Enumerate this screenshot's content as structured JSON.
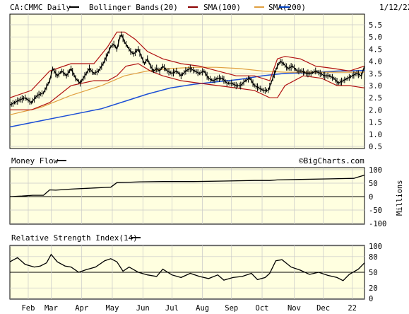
{
  "header": {
    "symbol": "CA:CMMC Daily",
    "legend": [
      {
        "label": "Bollinger Bands(20)",
        "color": "#8b0000"
      },
      {
        "label": "SMA(100)",
        "color": "#8b0000"
      },
      {
        "label": "SMA(200)",
        "color": "#e0a040"
      },
      {
        "label": "",
        "color": "#0040c0"
      }
    ],
    "date": "1/12/22"
  },
  "watermark": "©BigCharts.com",
  "colors": {
    "panel_bg": "#ffffe0",
    "grid": "#c8c8c8",
    "price": "#000000",
    "boll": "#b01010",
    "sma100": "#e0a040",
    "sma200": "#1c4fd6",
    "frame": "#000000"
  },
  "x_axis": {
    "months": [
      "Feb",
      "Mar",
      "Apr",
      "May",
      "Jun",
      "Jul",
      "Aug",
      "Sep",
      "Oct",
      "Nov",
      "Dec",
      "22"
    ]
  },
  "chart_data": [
    {
      "type": "line",
      "title": "CA:CMMC Daily",
      "series_kind": "price OHLC",
      "y_ticks": [
        "5.5",
        "5.0",
        "4.5",
        "4.0",
        "3.5",
        "3.0",
        "2.5",
        "2.0",
        "1.5",
        "1.0",
        "0.5"
      ],
      "ylim": [
        0.5,
        5.5
      ],
      "grid": true,
      "price_path": [
        [
          0,
          2.2
        ],
        [
          6,
          2.4
        ],
        [
          10,
          2.5
        ],
        [
          14,
          2.3
        ],
        [
          18,
          2.6
        ],
        [
          22,
          2.7
        ],
        [
          26,
          3.2
        ],
        [
          28,
          3.7
        ],
        [
          31,
          3.4
        ],
        [
          34,
          3.6
        ],
        [
          37,
          3.4
        ],
        [
          40,
          3.7
        ],
        [
          43,
          3.3
        ],
        [
          46,
          3.1
        ],
        [
          49,
          3.4
        ],
        [
          52,
          3.7
        ],
        [
          55,
          3.5
        ],
        [
          58,
          3.6
        ],
        [
          61,
          3.9
        ],
        [
          64,
          4.3
        ],
        [
          66,
          4.6
        ],
        [
          68,
          4.7
        ],
        [
          70,
          4.5
        ],
        [
          72,
          5.0
        ],
        [
          73,
          5.1
        ],
        [
          75,
          4.8
        ],
        [
          77,
          4.6
        ],
        [
          79,
          4.4
        ],
        [
          81,
          4.3
        ],
        [
          84,
          4.5
        ],
        [
          86,
          4.2
        ],
        [
          88,
          3.9
        ],
        [
          90,
          4.1
        ],
        [
          92,
          3.8
        ],
        [
          94,
          3.6
        ],
        [
          96,
          3.7
        ],
        [
          98,
          3.6
        ],
        [
          100,
          3.8
        ],
        [
          103,
          3.6
        ],
        [
          106,
          3.5
        ],
        [
          109,
          3.6
        ],
        [
          112,
          3.4
        ],
        [
          115,
          3.6
        ],
        [
          118,
          3.7
        ],
        [
          121,
          3.6
        ],
        [
          124,
          3.5
        ],
        [
          127,
          3.6
        ],
        [
          130,
          3.3
        ],
        [
          133,
          3.2
        ],
        [
          136,
          3.3
        ],
        [
          139,
          3.3
        ],
        [
          142,
          3.1
        ],
        [
          145,
          3.1
        ],
        [
          148,
          3.0
        ],
        [
          151,
          3.0
        ],
        [
          154,
          3.2
        ],
        [
          157,
          3.3
        ],
        [
          160,
          3.0
        ],
        [
          163,
          2.9
        ],
        [
          166,
          2.8
        ],
        [
          169,
          2.8
        ],
        [
          172,
          3.3
        ],
        [
          175,
          3.8
        ],
        [
          177,
          4.0
        ],
        [
          179,
          3.9
        ],
        [
          182,
          3.7
        ],
        [
          185,
          3.8
        ],
        [
          188,
          3.6
        ],
        [
          191,
          3.6
        ],
        [
          194,
          3.5
        ],
        [
          197,
          3.5
        ],
        [
          200,
          3.6
        ],
        [
          203,
          3.5
        ],
        [
          206,
          3.4
        ],
        [
          209,
          3.4
        ],
        [
          212,
          3.3
        ],
        [
          215,
          3.1
        ],
        [
          218,
          3.2
        ],
        [
          221,
          3.3
        ],
        [
          224,
          3.4
        ],
        [
          227,
          3.5
        ],
        [
          230,
          3.4
        ],
        [
          232,
          3.8
        ]
      ],
      "boll_upper": [
        [
          0,
          2.5
        ],
        [
          14,
          2.8
        ],
        [
          26,
          3.6
        ],
        [
          40,
          3.9
        ],
        [
          55,
          3.9
        ],
        [
          64,
          4.6
        ],
        [
          70,
          5.2
        ],
        [
          75,
          5.2
        ],
        [
          82,
          4.9
        ],
        [
          90,
          4.4
        ],
        [
          100,
          4.1
        ],
        [
          112,
          3.9
        ],
        [
          124,
          3.8
        ],
        [
          136,
          3.6
        ],
        [
          148,
          3.4
        ],
        [
          160,
          3.4
        ],
        [
          170,
          3.2
        ],
        [
          175,
          4.1
        ],
        [
          180,
          4.2
        ],
        [
          190,
          4.1
        ],
        [
          200,
          3.8
        ],
        [
          212,
          3.7
        ],
        [
          222,
          3.6
        ],
        [
          232,
          3.8
        ]
      ],
      "boll_lower": [
        [
          0,
          2.0
        ],
        [
          14,
          2.0
        ],
        [
          26,
          2.3
        ],
        [
          40,
          3.0
        ],
        [
          55,
          3.2
        ],
        [
          64,
          3.2
        ],
        [
          70,
          3.4
        ],
        [
          76,
          3.8
        ],
        [
          84,
          3.9
        ],
        [
          92,
          3.6
        ],
        [
          100,
          3.4
        ],
        [
          112,
          3.2
        ],
        [
          124,
          3.1
        ],
        [
          136,
          3.0
        ],
        [
          148,
          2.9
        ],
        [
          160,
          2.8
        ],
        [
          170,
          2.5
        ],
        [
          175,
          2.5
        ],
        [
          180,
          3.0
        ],
        [
          192,
          3.4
        ],
        [
          204,
          3.3
        ],
        [
          214,
          3.0
        ],
        [
          222,
          3.0
        ],
        [
          232,
          2.9
        ]
      ],
      "sma100": [
        [
          0,
          1.8
        ],
        [
          20,
          2.1
        ],
        [
          40,
          2.6
        ],
        [
          60,
          3.0
        ],
        [
          75,
          3.4
        ],
        [
          90,
          3.6
        ],
        [
          105,
          3.7
        ],
        [
          120,
          3.75
        ],
        [
          135,
          3.75
        ],
        [
          150,
          3.7
        ],
        [
          165,
          3.6
        ],
        [
          180,
          3.55
        ],
        [
          200,
          3.55
        ],
        [
          215,
          3.55
        ],
        [
          232,
          3.55
        ]
      ],
      "sma200": [
        [
          0,
          1.3
        ],
        [
          20,
          1.55
        ],
        [
          40,
          1.8
        ],
        [
          60,
          2.05
        ],
        [
          75,
          2.35
        ],
        [
          90,
          2.65
        ],
        [
          105,
          2.9
        ],
        [
          120,
          3.05
        ],
        [
          135,
          3.15
        ],
        [
          150,
          3.25
        ],
        [
          165,
          3.4
        ],
        [
          180,
          3.5
        ],
        [
          200,
          3.55
        ],
        [
          215,
          3.6
        ],
        [
          232,
          3.62
        ]
      ]
    },
    {
      "type": "line",
      "title": "Money Flow",
      "y_ticks": [
        "100",
        "50",
        "0",
        "-50",
        "-100"
      ],
      "ylabel": "Millions",
      "ylim": [
        -100,
        100
      ],
      "values": [
        [
          0,
          0
        ],
        [
          8,
          2
        ],
        [
          15,
          5
        ],
        [
          22,
          5
        ],
        [
          26,
          25
        ],
        [
          30,
          24
        ],
        [
          40,
          28
        ],
        [
          55,
          32
        ],
        [
          62,
          34
        ],
        [
          66,
          35
        ],
        [
          70,
          52
        ],
        [
          76,
          53
        ],
        [
          85,
          55
        ],
        [
          100,
          56
        ],
        [
          120,
          56
        ],
        [
          140,
          58
        ],
        [
          160,
          60
        ],
        [
          170,
          60
        ],
        [
          175,
          62
        ],
        [
          190,
          64
        ],
        [
          210,
          66
        ],
        [
          225,
          68
        ],
        [
          232,
          80
        ]
      ]
    },
    {
      "type": "line",
      "title": "Relative Strength Index(14)",
      "y_ticks": [
        "100",
        "80",
        "50",
        "20",
        "0"
      ],
      "ylim": [
        0,
        100
      ],
      "values": [
        [
          0,
          70
        ],
        [
          5,
          78
        ],
        [
          10,
          65
        ],
        [
          16,
          60
        ],
        [
          20,
          62
        ],
        [
          24,
          68
        ],
        [
          27,
          84
        ],
        [
          31,
          70
        ],
        [
          36,
          62
        ],
        [
          40,
          60
        ],
        [
          45,
          50
        ],
        [
          50,
          55
        ],
        [
          56,
          60
        ],
        [
          62,
          72
        ],
        [
          66,
          76
        ],
        [
          70,
          70
        ],
        [
          74,
          52
        ],
        [
          78,
          60
        ],
        [
          84,
          50
        ],
        [
          90,
          45
        ],
        [
          96,
          42
        ],
        [
          100,
          56
        ],
        [
          106,
          45
        ],
        [
          112,
          40
        ],
        [
          118,
          48
        ],
        [
          124,
          42
        ],
        [
          130,
          38
        ],
        [
          136,
          45
        ],
        [
          140,
          35
        ],
        [
          146,
          40
        ],
        [
          152,
          42
        ],
        [
          158,
          48
        ],
        [
          162,
          36
        ],
        [
          167,
          40
        ],
        [
          170,
          48
        ],
        [
          174,
          72
        ],
        [
          178,
          74
        ],
        [
          184,
          60
        ],
        [
          190,
          54
        ],
        [
          196,
          46
        ],
        [
          202,
          50
        ],
        [
          208,
          44
        ],
        [
          214,
          40
        ],
        [
          218,
          34
        ],
        [
          222,
          46
        ],
        [
          228,
          56
        ],
        [
          232,
          68
        ]
      ]
    }
  ]
}
